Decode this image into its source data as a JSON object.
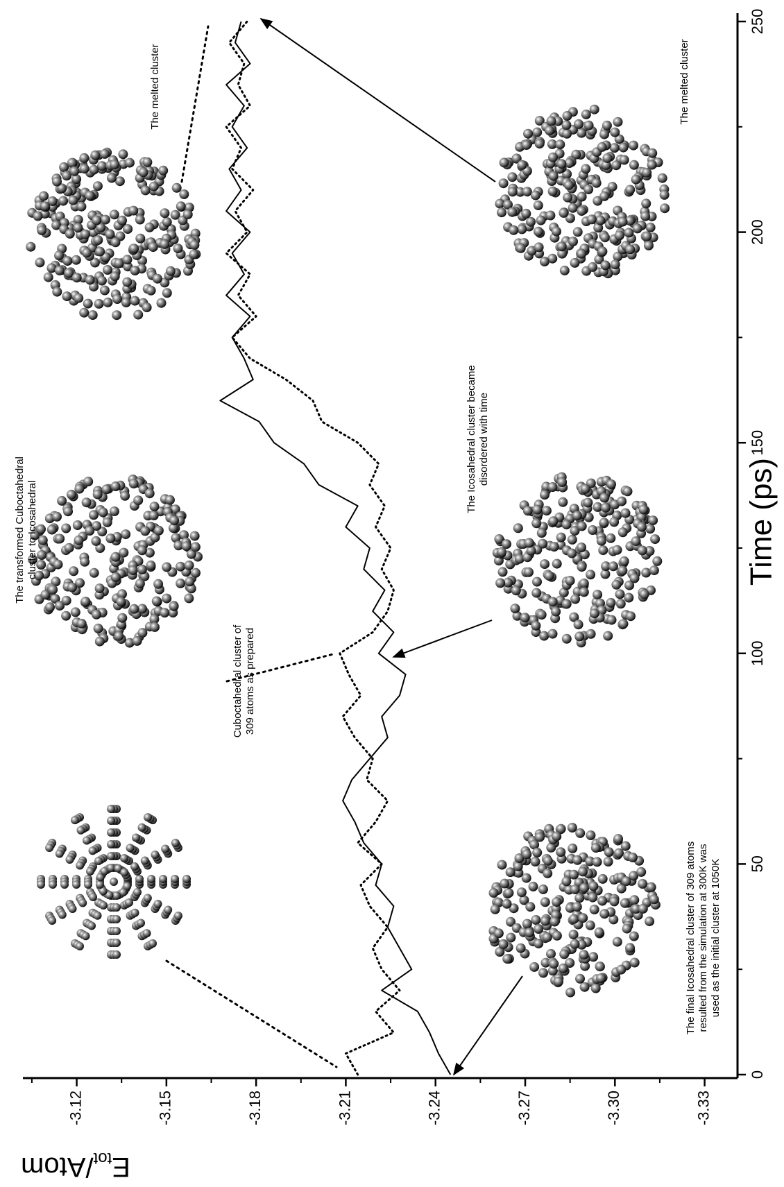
{
  "chart_data": {
    "type": "line",
    "xlabel": "Time (ps)",
    "ylabel": {
      "main": "E",
      "sub": "tot",
      "rest": "/Atom"
    },
    "x": [
      0,
      5,
      10,
      15,
      20,
      25,
      30,
      35,
      40,
      45,
      50,
      55,
      60,
      65,
      70,
      75,
      80,
      85,
      90,
      95,
      100,
      105,
      110,
      115,
      120,
      125,
      130,
      135,
      140,
      145,
      150,
      155,
      160,
      165,
      170,
      175,
      180,
      185,
      190,
      195,
      200,
      205,
      210,
      215,
      220,
      225,
      230,
      235,
      240,
      245,
      250
    ],
    "series": [
      {
        "color": "#000000",
        "style": "solid",
        "values": [
          -3.245,
          -3.241,
          -3.238,
          -3.234,
          -3.222,
          -3.232,
          -3.228,
          -3.224,
          -3.226,
          -3.22,
          -3.222,
          -3.216,
          -3.213,
          -3.209,
          -3.212,
          -3.218,
          -3.224,
          -3.222,
          -3.228,
          -3.23,
          -3.221,
          -3.226,
          -3.219,
          -3.223,
          -3.216,
          -3.218,
          -3.21,
          -3.214,
          -3.201,
          -3.196,
          -3.186,
          -3.181,
          -3.168,
          -3.179,
          -3.176,
          -3.172,
          -3.178,
          -3.17,
          -3.176,
          -3.172,
          -3.178,
          -3.17,
          -3.175,
          -3.171,
          -3.177,
          -3.172,
          -3.176,
          -3.17,
          -3.178,
          -3.173,
          -3.175
        ]
      },
      {
        "color": "#000000",
        "style": "dotted",
        "values": [
          -3.214,
          -3.21,
          -3.226,
          -3.22,
          -3.228,
          -3.222,
          -3.219,
          -3.224,
          -3.218,
          -3.215,
          -3.222,
          -3.214,
          -3.22,
          -3.224,
          -3.217,
          -3.219,
          -3.213,
          -3.209,
          -3.215,
          -3.211,
          -3.208,
          -3.219,
          -3.224,
          -3.226,
          -3.222,
          -3.225,
          -3.22,
          -3.223,
          -3.218,
          -3.221,
          -3.214,
          -3.202,
          -3.199,
          -3.19,
          -3.178,
          -3.172,
          -3.18,
          -3.174,
          -3.178,
          -3.17,
          -3.177,
          -3.173,
          -3.179,
          -3.172,
          -3.175,
          -3.17,
          -3.178,
          -3.174,
          -3.176,
          -3.171,
          -3.177
        ]
      }
    ],
    "xlim": [
      0,
      250
    ],
    "xticks": [
      0,
      50,
      100,
      150,
      200,
      250
    ],
    "xminorticks": [
      25,
      75,
      125,
      175,
      225
    ],
    "ylim": [
      -3.341,
      -3.102
    ],
    "yticks": [
      -3.12,
      -3.15,
      -3.18,
      -3.21,
      -3.24,
      -3.27,
      {
        "value": -3.3,
        "label": "-3.30"
      },
      -3.33
    ],
    "yminorticks": [
      -3.105,
      -3.135,
      -3.165,
      -3.195,
      -3.225,
      -3.255,
      -3.285,
      -3.315
    ],
    "annotations": [
      {
        "lines": [
          "Cuboctahedral cluster of",
          "309 atoms as prepared"
        ]
      },
      {
        "lines": [
          "The transformed Cuboctahedral",
          "cluster to Icosahedral"
        ]
      },
      {
        "lines": [
          "The melted cluster"
        ]
      },
      {
        "lines": [
          "The final Icosahedral cluster of 309 atoms",
          "resulted from the simulation at 300K was",
          "used as the initial cluster at 1050K"
        ]
      },
      {
        "lines": [
          "The Icosahedral cluster became",
          "disordered with time"
        ]
      },
      {
        "lines": [
          "The melted cluster"
        ]
      }
    ]
  }
}
